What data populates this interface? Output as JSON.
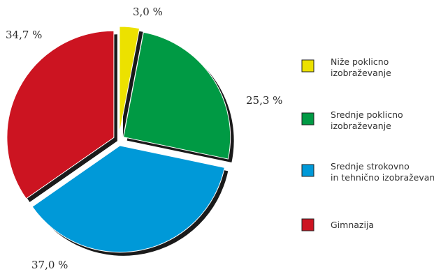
{
  "chart_data": {
    "type": "pie",
    "slices": [
      {
        "label": "Niže poklicno izobraževanje",
        "value": 3.0,
        "display": "3,0 %",
        "color": "#ece100",
        "legend_lines": [
          "Niže poklicno",
          "izobraževanje"
        ]
      },
      {
        "label": "Srednje poklicno izobraževanje",
        "value": 25.3,
        "display": "25,3 %",
        "color": "#009a44",
        "legend_lines": [
          "Srednje poklicno",
          "izobraževanje"
        ]
      },
      {
        "label": "Srednje strokovno in tehnično izobraževanje",
        "value": 37.0,
        "display": "37,0 %",
        "color": "#0099d8",
        "legend_lines": [
          "Srednje strokovno",
          "in tehnično izobraževanje"
        ]
      },
      {
        "label": "Gimnazija",
        "value": 34.7,
        "display": "34,7 %",
        "color": "#cc1421",
        "legend_lines": [
          "Gimnazija"
        ]
      }
    ],
    "legend_position": "right",
    "exploded": true,
    "shadow_color": "#1a1a1a"
  }
}
